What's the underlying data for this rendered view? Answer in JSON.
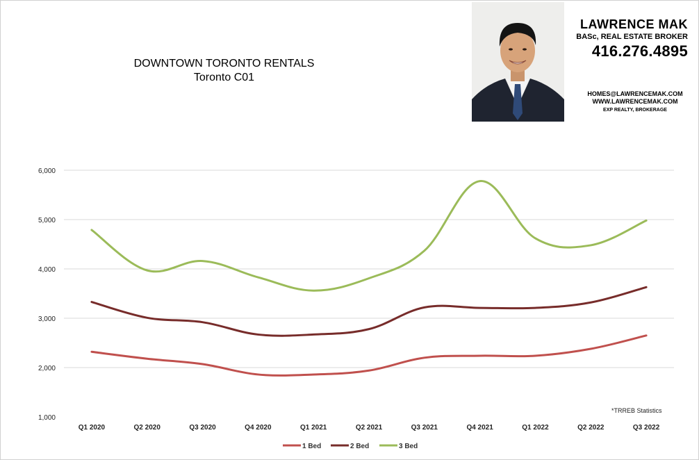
{
  "header": {
    "title": "DOWNTOWN TORONTO RENTALS",
    "subtitle": "Toronto C01"
  },
  "agent": {
    "name": "LAWRENCE MAK",
    "credentials": "BASc, REAL ESTATE BROKER",
    "phone": "416.276.4895",
    "email": "HOMES@LAWRENCEMAK.COM",
    "website": "WWW.LAWRENCEMAK.COM",
    "brokerage": "EXP REALTY, BROKERAGE"
  },
  "colors": {
    "one_bed": "#c0504d",
    "two_bed": "#772c2a",
    "three_bed": "#9bbb59",
    "grid": "#d9d9d9"
  },
  "chart_data": {
    "type": "line",
    "title": "",
    "xlabel": "",
    "ylabel": "",
    "categories": [
      "Q1 2020",
      "Q2 2020",
      "Q3 2020",
      "Q4 2020",
      "Q1 2021",
      "Q2 2021",
      "Q3 2021",
      "Q4 2021",
      "Q1 2022",
      "Q2 2022",
      "Q3 2022"
    ],
    "ylim": [
      1000,
      6000
    ],
    "yticks": [
      "1,000",
      "2,000",
      "3,000",
      "4,000",
      "5,000",
      "6,000"
    ],
    "grid": true,
    "legend": "bottom",
    "annotation": "*TRREB Statistics",
    "series": [
      {
        "name": "1 Bed",
        "color": "#c0504d",
        "values": [
          2320,
          2180,
          2070,
          1860,
          1860,
          1940,
          2200,
          2240,
          2240,
          2380,
          2650
        ]
      },
      {
        "name": "2 Bed",
        "color": "#772c2a",
        "values": [
          3330,
          3010,
          2920,
          2670,
          2670,
          2780,
          3220,
          3210,
          3210,
          3320,
          3630
        ]
      },
      {
        "name": "3 Bed",
        "color": "#9bbb59",
        "values": [
          4790,
          3970,
          4160,
          3830,
          3560,
          3810,
          4370,
          5780,
          4620,
          4480,
          4980
        ]
      }
    ]
  }
}
